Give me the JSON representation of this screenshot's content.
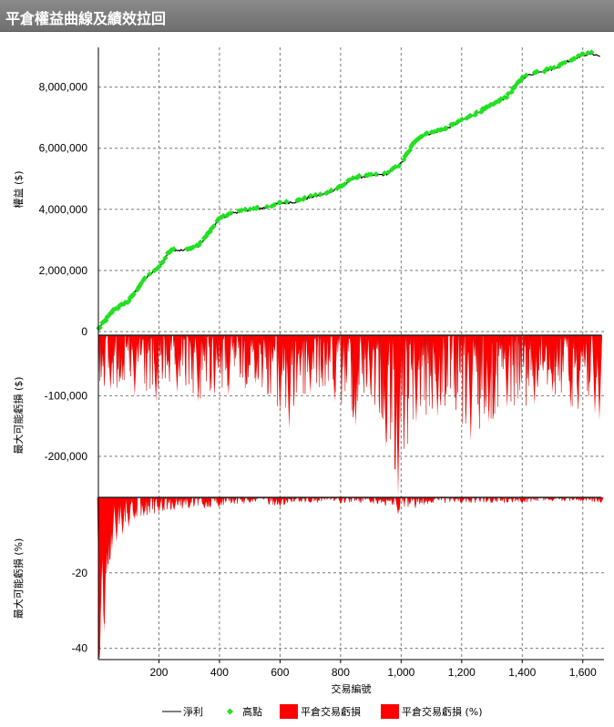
{
  "title": "平倉權益曲線及績效拉回",
  "chart_data": [
    {
      "type": "line",
      "ylabel": "權益 ($)",
      "ylim": [
        0,
        9300000
      ],
      "yticks": [
        0,
        2000000,
        4000000,
        6000000,
        8000000
      ],
      "ytick_labels": [
        "0",
        "2,000,000",
        "4,000,000",
        "6,000,000",
        "8,000,000"
      ],
      "series": [
        {
          "name": "淨利",
          "color": "#000000",
          "x": [
            1,
            50,
            100,
            150,
            200,
            240,
            280,
            330,
            370,
            400,
            450,
            500,
            550,
            600,
            650,
            700,
            750,
            800,
            850,
            900,
            950,
            980,
            1000,
            1050,
            1080,
            1100,
            1150,
            1200,
            1250,
            1300,
            1350,
            1400,
            1450,
            1500,
            1550,
            1600,
            1630,
            1660
          ],
          "y": [
            100000,
            700000,
            1000000,
            1700000,
            2100000,
            2700000,
            2650000,
            2800000,
            3300000,
            3700000,
            3900000,
            4000000,
            4050000,
            4200000,
            4250000,
            4400000,
            4500000,
            4750000,
            5050000,
            5100000,
            5150000,
            5350000,
            5500000,
            6300000,
            6450000,
            6500000,
            6650000,
            6900000,
            7150000,
            7400000,
            7700000,
            8300000,
            8500000,
            8600000,
            8850000,
            9050000,
            9100000,
            9000000
          ]
        },
        {
          "name": "高點",
          "color": "#22e022"
        }
      ]
    },
    {
      "type": "area",
      "ylabel": "最大可能虧損 ($)",
      "ylim": [
        -265000,
        0
      ],
      "yticks": [
        -100000,
        -200000
      ],
      "ytick_labels": [
        "-100,000",
        "-200,000"
      ],
      "series": [
        {
          "name": "平倉交易虧損",
          "color": "#ff0000",
          "x": [
            40,
            120,
            190,
            260,
            330,
            430,
            520,
            600,
            630,
            700,
            780,
            850,
            900,
            950,
            990,
            1050,
            1120,
            1230,
            1290,
            1350,
            1440,
            1500,
            1560,
            1640,
            1655
          ],
          "y": [
            -90000,
            -100000,
            -110000,
            -95000,
            -110000,
            -100000,
            -80000,
            -130000,
            -155000,
            -95000,
            -110000,
            -150000,
            -105000,
            -185000,
            -265000,
            -145000,
            -135000,
            -175000,
            -145000,
            -120000,
            -115000,
            -95000,
            -120000,
            -130000,
            -140000
          ]
        }
      ]
    },
    {
      "type": "area",
      "ylabel": "最大可能虧損 (%)",
      "ylim": [
        -43,
        0
      ],
      "yticks": [
        -20,
        -40
      ],
      "ytick_labels": [
        "-20",
        "-40"
      ],
      "series": [
        {
          "name": "平倉交易虧損 (%)",
          "color": "#ff0000",
          "x": [
            5,
            12,
            20,
            30,
            45,
            60,
            80,
            100,
            120,
            150,
            200,
            250,
            300,
            350,
            400,
            500,
            600,
            700,
            800,
            900,
            990,
            1100,
            1200,
            1300,
            1400,
            1500,
            1600,
            1660
          ],
          "y": [
            -43,
            -22,
            -36,
            -20,
            -14,
            -12,
            -10,
            -8,
            -6,
            -5,
            -4,
            -3.5,
            -3,
            -3,
            -2.5,
            -1.5,
            -2.5,
            -1.5,
            -1.5,
            -1.5,
            -4.5,
            -1.5,
            -1.5,
            -1.5,
            -1.5,
            -1,
            -1,
            -1.5
          ]
        }
      ]
    }
  ],
  "x_axis": {
    "label": "交易編號",
    "xlim": [
      0,
      1670
    ],
    "ticks": [
      200,
      400,
      600,
      800,
      1000,
      1200,
      1400,
      1600
    ],
    "tick_labels": [
      "200",
      "400",
      "600",
      "800",
      "1,000",
      "1,200",
      "1,400",
      "1,600"
    ]
  },
  "legend": {
    "placement": "bottom",
    "items": [
      "淨利",
      "高點",
      "平倉交易虧損",
      "平倉交易虧損 (%)"
    ]
  }
}
